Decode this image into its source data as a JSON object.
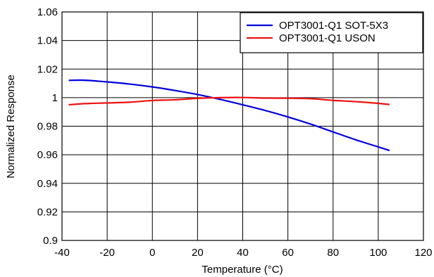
{
  "chart_data": {
    "type": "line",
    "title": "",
    "xlabel": "Temperature (°C)",
    "ylabel": "Normalized Response",
    "xlim": [
      -40,
      120
    ],
    "ylim": [
      0.9,
      1.06
    ],
    "x_ticks": [
      -40,
      -20,
      0,
      20,
      40,
      60,
      80,
      100,
      120
    ],
    "y_ticks": [
      0.9,
      0.92,
      0.94,
      0.96,
      0.98,
      1,
      1.02,
      1.04,
      1.06
    ],
    "x_tick_labels": [
      "-40",
      "-20",
      "0",
      "20",
      "40",
      "60",
      "80",
      "100",
      "120"
    ],
    "y_tick_labels": [
      "0.9",
      "0.92",
      "0.94",
      "0.96",
      "0.98",
      "1",
      "1.02",
      "1.04",
      "1.06"
    ],
    "grid": true,
    "legend_position": "top-right",
    "series": [
      {
        "name": "OPT3001-Q1 SOT-5X3",
        "color": "#0000dd",
        "x": [
          -37,
          -30,
          -20,
          -10,
          0,
          10,
          20,
          30,
          40,
          50,
          60,
          70,
          80,
          90,
          100,
          105
        ],
        "y": [
          1.0121,
          1.0122,
          1.011,
          1.0095,
          1.0075,
          1.005,
          1.0022,
          0.9988,
          0.995,
          0.991,
          0.9865,
          0.9815,
          0.976,
          0.9705,
          0.9655,
          0.963
        ]
      },
      {
        "name": "OPT3001-Q1 USON",
        "color": "#ee1111",
        "x": [
          -37,
          -30,
          -20,
          -10,
          0,
          10,
          20,
          30,
          40,
          50,
          60,
          70,
          80,
          90,
          100,
          105
        ],
        "y": [
          0.995,
          0.9958,
          0.9963,
          0.9968,
          0.998,
          0.9985,
          0.9995,
          1.0,
          1.0001,
          0.9997,
          0.9996,
          0.9993,
          0.9981,
          0.9972,
          0.996,
          0.9952
        ]
      }
    ]
  }
}
